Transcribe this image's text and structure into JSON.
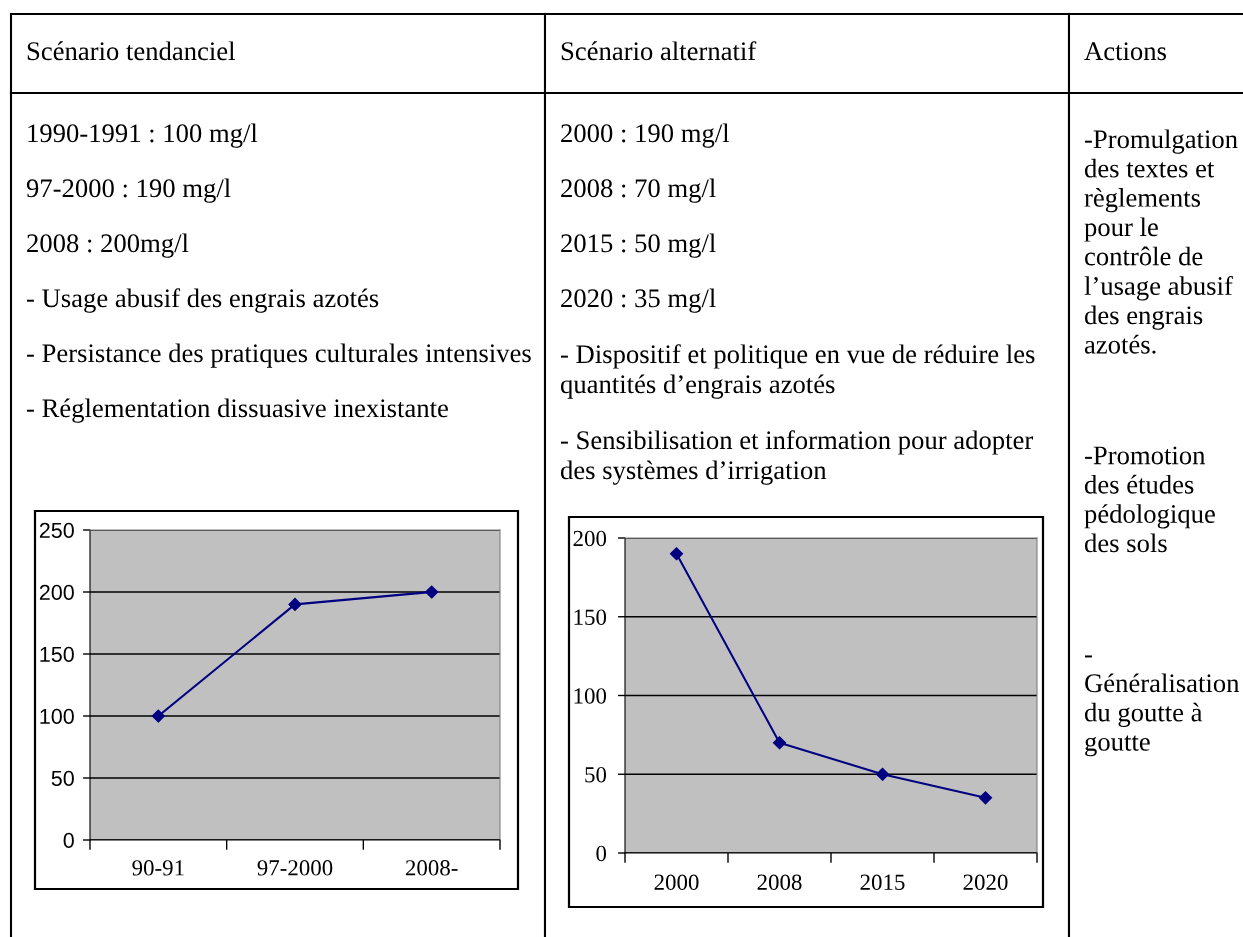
{
  "chart_data": [
    {
      "type": "line",
      "title": "Scénario tendanciel",
      "annotations": [
        "1990-1991 : 100 mg/l",
        "97-2000 : 190 mg/l",
        "2008 : 200mg/l",
        "- Usage abusif des engrais azotés",
        "- Persistance des pratiques culturales intensives",
        "- Réglementation dissuasive inexistante"
      ],
      "categories": [
        "90-91",
        "97-2000",
        "2008-"
      ],
      "series": [
        {
          "color": "#000080",
          "values": [
            100,
            190,
            200
          ]
        }
      ],
      "ylim": [
        0,
        250
      ],
      "yticks": [
        0,
        50,
        100,
        150,
        200,
        250
      ],
      "grid": "y",
      "marker": "diamond",
      "line_style": "solid"
    },
    {
      "type": "line",
      "title": "Scénario alternatif",
      "annotations": [
        "2000 : 190 mg/l",
        "2008 : 70 mg/l",
        "2015 : 50 mg/l",
        "2020 : 35 mg/l",
        "- Dispositif et politique en vue de réduire les quantités d’engrais azotés",
        "- Sensibilisation et information pour adopter des systèmes d’irrigation"
      ],
      "categories": [
        "2000",
        "2008",
        "2015",
        "2020"
      ],
      "series": [
        {
          "color": "#000080",
          "values": [
            190,
            70,
            50,
            35
          ]
        }
      ],
      "ylim": [
        0,
        200
      ],
      "yticks": [
        0,
        50,
        100,
        150,
        200
      ],
      "grid": "y",
      "marker": "diamond",
      "line_style": "solid"
    },
    {
      "type": "other",
      "title": "Actions",
      "annotations": [
        "-Promulgation des textes et règlements pour le contrôle de l’usage abusif des engrais azotés.",
        "-Promotion des études pédologique des sols",
        "- Généralisation du goutte à goutte"
      ]
    }
  ]
}
